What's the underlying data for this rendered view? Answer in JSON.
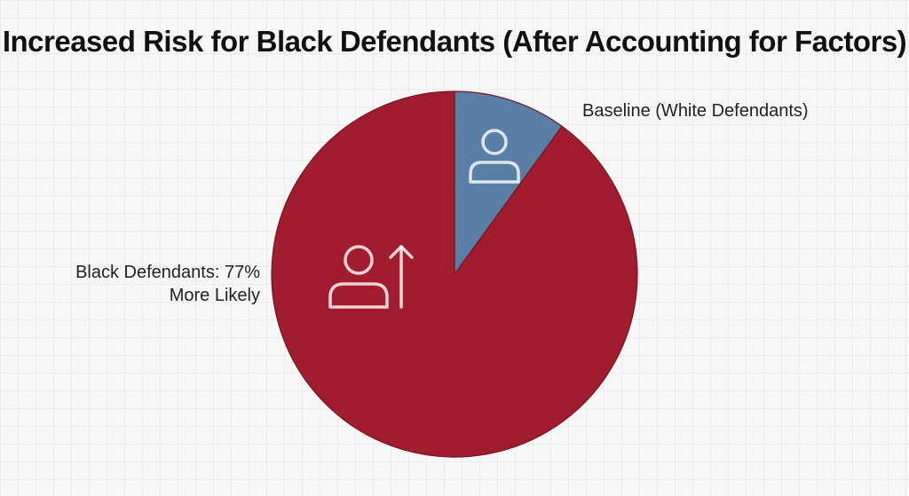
{
  "chart_data": {
    "type": "pie",
    "title": "Increased Risk for Black Defendants (After Accounting for Factors)",
    "slices": [
      {
        "label": "Baseline (White Defendants)",
        "value": 10,
        "color": "#5a7fa6",
        "icon": "person-icon"
      },
      {
        "label_lines": [
          "Black Defendants: 77%",
          "More Likely"
        ],
        "value": 90,
        "color": "#a01c2e",
        "icon": "person-up-arrow-icon"
      }
    ],
    "legend": "none"
  }
}
